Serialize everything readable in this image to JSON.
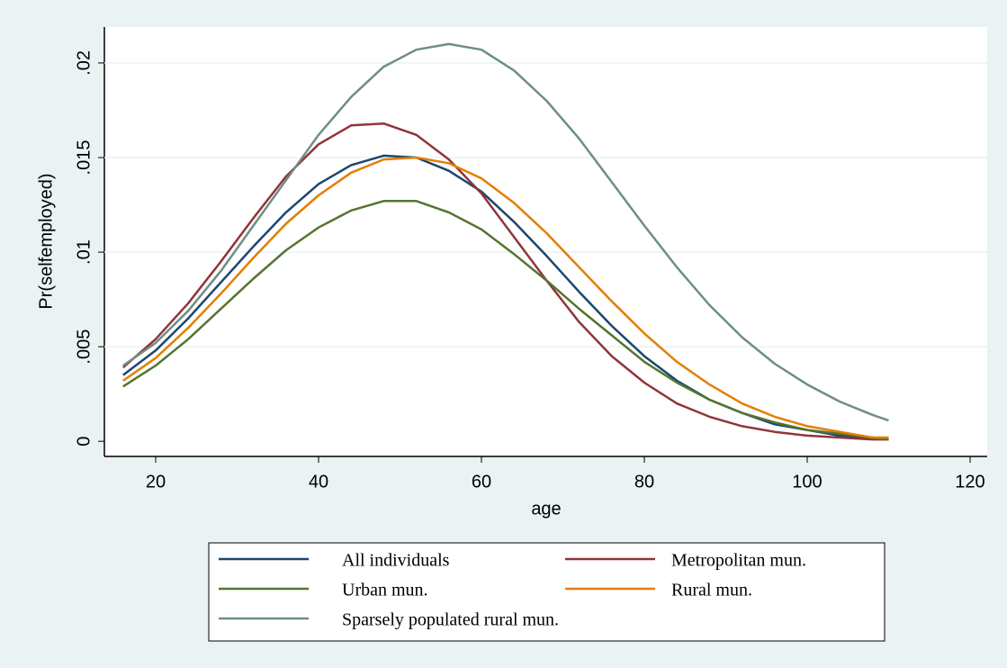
{
  "chart_data": {
    "type": "line",
    "x_label": "age",
    "y_label": "Pr(selfemployed)",
    "x": [
      16,
      20,
      24,
      28,
      32,
      36,
      40,
      44,
      48,
      52,
      56,
      60,
      64,
      68,
      72,
      76,
      80,
      84,
      88,
      92,
      96,
      100,
      104,
      108,
      110
    ],
    "series": [
      {
        "name": "All individuals",
        "color": "#1a476f",
        "values": [
          0.0035,
          0.0048,
          0.0065,
          0.0084,
          0.0103,
          0.0121,
          0.0136,
          0.0146,
          0.0151,
          0.015,
          0.0143,
          0.0132,
          0.0116,
          0.0098,
          0.0079,
          0.0061,
          0.0045,
          0.0032,
          0.0022,
          0.0015,
          0.0009,
          0.0006,
          0.0003,
          0.0002,
          0.0001
        ]
      },
      {
        "name": "Metropolitan mun.",
        "color": "#90353b",
        "values": [
          0.0039,
          0.0054,
          0.0073,
          0.0095,
          0.0118,
          0.014,
          0.0157,
          0.0167,
          0.0168,
          0.0162,
          0.0149,
          0.0131,
          0.0108,
          0.0085,
          0.0063,
          0.0045,
          0.0031,
          0.002,
          0.0013,
          0.0008,
          0.0005,
          0.0003,
          0.0002,
          0.0001,
          0.0001
        ]
      },
      {
        "name": "Urban mun.",
        "color": "#55752f",
        "values": [
          0.0029,
          0.004,
          0.0054,
          0.007,
          0.0086,
          0.0101,
          0.0113,
          0.0122,
          0.0127,
          0.0127,
          0.0121,
          0.0112,
          0.0099,
          0.0085,
          0.007,
          0.0056,
          0.0042,
          0.0031,
          0.0022,
          0.0015,
          0.001,
          0.0006,
          0.0004,
          0.0002,
          0.0001
        ]
      },
      {
        "name": "Rural mun.",
        "color": "#e37e00",
        "values": [
          0.0032,
          0.0044,
          0.006,
          0.0078,
          0.0097,
          0.0115,
          0.013,
          0.0142,
          0.0149,
          0.015,
          0.0147,
          0.0139,
          0.0126,
          0.011,
          0.0092,
          0.0074,
          0.0057,
          0.0042,
          0.003,
          0.002,
          0.0013,
          0.0008,
          0.0005,
          0.0002,
          0.0002
        ]
      },
      {
        "name": "Sparsely populated rural mun.",
        "color": "#6e8e84",
        "values": [
          0.004,
          0.0052,
          0.0069,
          0.009,
          0.0114,
          0.0138,
          0.0162,
          0.0182,
          0.0198,
          0.0207,
          0.021,
          0.0207,
          0.0196,
          0.018,
          0.016,
          0.0137,
          0.0114,
          0.0092,
          0.0072,
          0.0055,
          0.0041,
          0.003,
          0.0021,
          0.0014,
          0.0011
        ]
      }
    ],
    "xlim": [
      13.7,
      122.1
    ],
    "xticks": [
      20,
      40,
      60,
      80,
      100,
      120
    ],
    "ylim": [
      -0.0008,
      0.0219
    ],
    "yticks": [
      0,
      {
        "value": 0.005,
        "label": ".005"
      },
      {
        "value": 0.01,
        "label": ".01"
      },
      {
        "value": 0.015,
        "label": ".015"
      },
      {
        "value": 0.02,
        "label": ".02"
      }
    ],
    "grid": true
  }
}
